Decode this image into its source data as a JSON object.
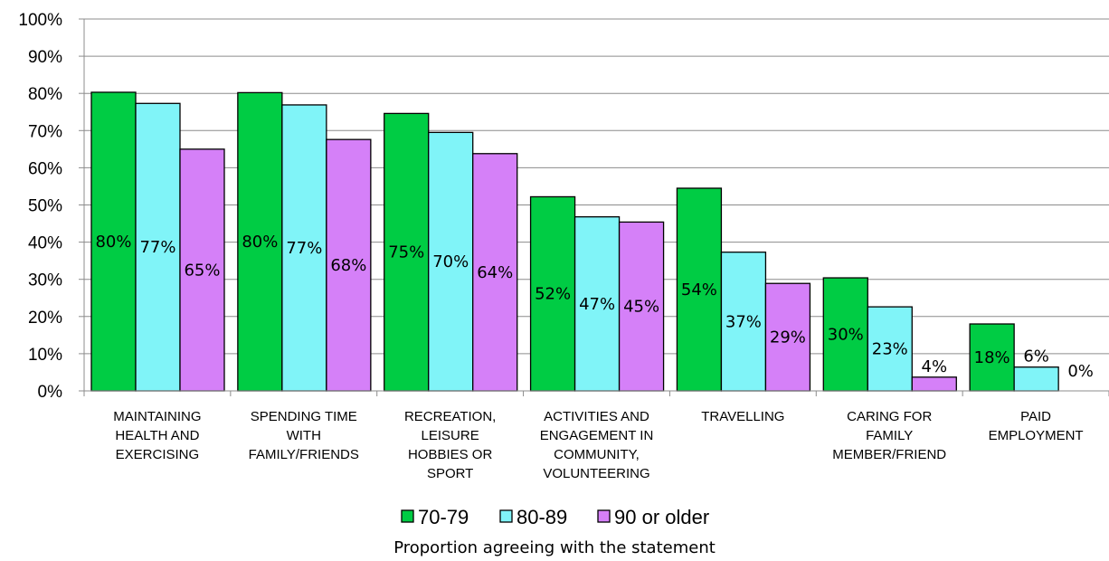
{
  "chart_data": {
    "type": "bar",
    "categories": [
      [
        "MAINTAINING",
        "HEALTH AND",
        "EXERCISING"
      ],
      [
        "SPENDING TIME",
        "WITH",
        "FAMILY/FRIENDS"
      ],
      [
        "RECREATION,",
        "LEISURE",
        "HOBBIES OR",
        "SPORT"
      ],
      [
        "ACTIVITIES AND",
        "ENGAGEMENT IN",
        "COMMUNITY,",
        "VOLUNTEERING"
      ],
      [
        "TRAVELLING"
      ],
      [
        "CARING FOR",
        "FAMILY",
        "MEMBER/FRIEND"
      ],
      [
        "PAID",
        "EMPLOYMENT"
      ]
    ],
    "series": [
      {
        "name": "70-79",
        "color": "#00CC44",
        "values": [
          80.3,
          80.2,
          74.6,
          52.2,
          54.5,
          30.4,
          18.0
        ],
        "labels": [
          "80%",
          "80%",
          "75%",
          "52%",
          "54%",
          "30%",
          "18%"
        ]
      },
      {
        "name": "80-89",
        "color": "#80F4F8",
        "values": [
          77.3,
          76.9,
          69.5,
          46.8,
          37.3,
          22.6,
          6.4
        ],
        "labels": [
          "77%",
          "77%",
          "70%",
          "47%",
          "37%",
          "23%",
          "6%"
        ]
      },
      {
        "name": "90 or older",
        "color": "#D580F8",
        "values": [
          65.0,
          67.6,
          63.8,
          45.4,
          28.9,
          3.7,
          0.0
        ],
        "labels": [
          "65%",
          "68%",
          "64%",
          "45%",
          "29%",
          "4%",
          "0%"
        ]
      }
    ],
    "yticks": [
      "0%",
      "10%",
      "20%",
      "30%",
      "40%",
      "50%",
      "60%",
      "70%",
      "80%",
      "90%",
      "100%"
    ],
    "ylim": [
      0,
      100
    ],
    "grid": true,
    "legend_position": "bottom",
    "xlabel": "Proportion agreeing with the statement",
    "title": ""
  }
}
